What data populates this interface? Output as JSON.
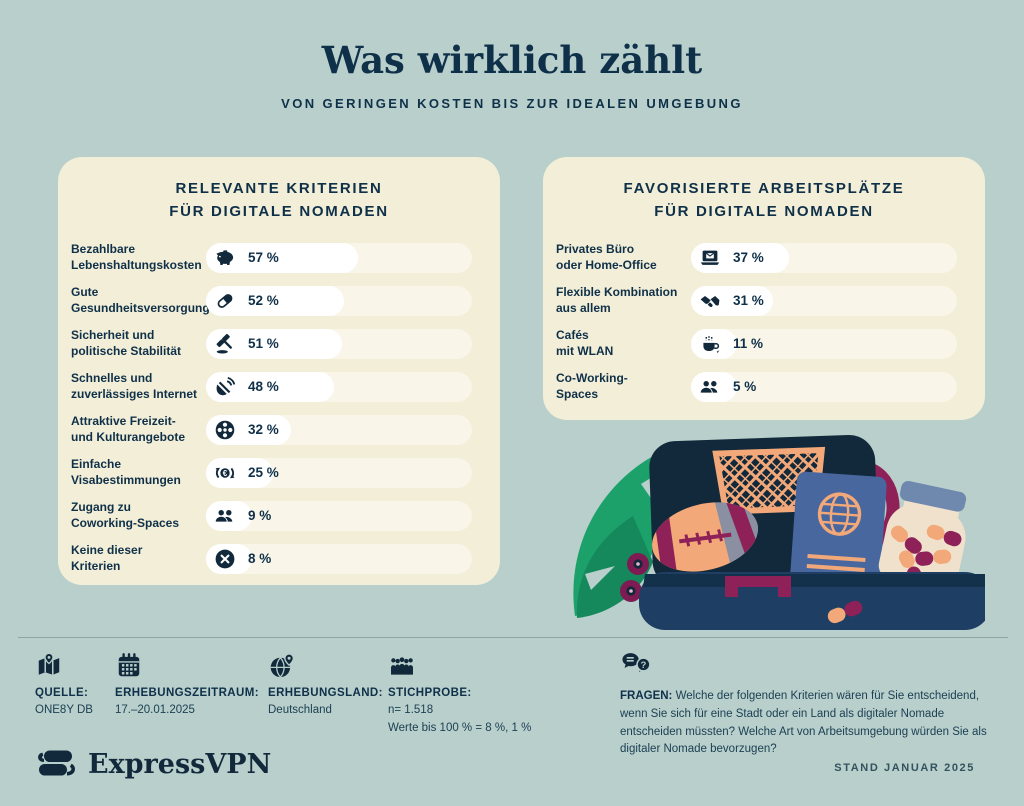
{
  "header": {
    "title": "Was wirklich zählt",
    "subtitle": "VON GERINGEN KOSTEN BIS ZUR IDEALEN UMGEBUNG"
  },
  "panels": {
    "criteria": {
      "title": "RELEVANTE KRITERIEN\nFÜR DIGITALE NOMADEN",
      "rows": [
        {
          "label": "Bezahlbare\nLebenshaltungskosten",
          "icon": "piggy-bank",
          "value": 57,
          "value_label": "57 %"
        },
        {
          "label": "Gute\nGesundheitsversorgung",
          "icon": "pill",
          "value": 52,
          "value_label": "52 %"
        },
        {
          "label": "Sicherheit und\npolitische Stabilität",
          "icon": "gavel",
          "value": 51,
          "value_label": "51 %"
        },
        {
          "label": "Schnelles und\nzuverlässiges Internet",
          "icon": "satellite-dish",
          "value": 48,
          "value_label": "48 %"
        },
        {
          "label": "Attraktive Freizeit-\nund Kulturangebote",
          "icon": "film-reel",
          "value": 32,
          "value_label": "32 %"
        },
        {
          "label": "Einfache\nVisabestimmungen",
          "icon": "currency-exchange",
          "value": 25,
          "value_label": "25 %"
        },
        {
          "label": "Zugang zu\nCoworking-Spaces",
          "icon": "people",
          "value": 9,
          "value_label": "9 %"
        },
        {
          "label": "Keine dieser\nKriterien",
          "icon": "x-circle",
          "value": 8,
          "value_label": "8 %"
        }
      ]
    },
    "workplaces": {
      "title": "FAVORISIERTE ARBEITSPLÄTZE\nFÜR DIGITALE NOMADEN",
      "rows": [
        {
          "label": "Privates Büro\noder Home-Office",
          "icon": "laptop",
          "value": 37,
          "value_label": "37 %"
        },
        {
          "label": "Flexible Kombination\naus allem",
          "icon": "handshake",
          "value": 31,
          "value_label": "31 %"
        },
        {
          "label": "Cafés\nmit WLAN",
          "icon": "coffee-cup",
          "value": 11,
          "value_label": "11 %"
        },
        {
          "label": "Co-Working-\nSpaces",
          "icon": "people",
          "value": 5,
          "value_label": "5 %"
        }
      ]
    }
  },
  "footer": {
    "facts": [
      {
        "icon": "map",
        "label": "QUELLE:",
        "lines": "ONE8Y DB"
      },
      {
        "icon": "calendar",
        "label": "ERHEBUNGSZEITRAUM:",
        "lines": "17.–20.01.2025"
      },
      {
        "icon": "globe-pin",
        "label": "ERHEBUNGSLAND:",
        "lines": "Deutschland"
      },
      {
        "icon": "crowd",
        "label": "STICHPROBE:",
        "lines": "n= 1.518\nWerte bis 100 % = 8 %, 1 %"
      }
    ],
    "questions": {
      "icon": "speech-bubbles",
      "label": "FRAGEN:",
      "text": "Welche der folgenden Kriterien wären für Sie entscheidend, wenn Sie sich für eine Stadt oder ein Land als digitaler Nomade entscheiden müssten? Welche Art von Arbeitsumgebung würden Sie als digitaler Nomade bevorzugen?"
    },
    "brand": "ExpressVPN",
    "stand": "STAND JANUAR 2025"
  },
  "colors": {
    "background": "#b8cfcb",
    "panel": "#f3eed7",
    "bar_track": "#f9f5e8",
    "bar_fill": "#ffffff",
    "navy": "#0f3049",
    "leaf_green": "#1ca16b",
    "orange": "#f2a878",
    "magenta": "#8e2157",
    "passport_blue": "#49679f"
  },
  "chart_data": [
    {
      "type": "bar",
      "orientation": "horizontal",
      "title": "Relevante Kriterien für Digitale Nomaden",
      "categories": [
        "Bezahlbare Lebenshaltungskosten",
        "Gute Gesundheitsversorgung",
        "Sicherheit und politische Stabilität",
        "Schnelles und zuverlässiges Internet",
        "Attraktive Freizeit- und Kulturangebote",
        "Einfache Visabestimmungen",
        "Zugang zu Coworking-Spaces",
        "Keine dieser Kriterien"
      ],
      "values": [
        57,
        52,
        51,
        48,
        32,
        25,
        9,
        8
      ],
      "unit": "%",
      "xlim": [
        0,
        100
      ],
      "grid": false,
      "data_labels": true
    },
    {
      "type": "bar",
      "orientation": "horizontal",
      "title": "Favorisierte Arbeitsplätze für Digitale Nomaden",
      "categories": [
        "Privates Büro oder Home-Office",
        "Flexible Kombination aus allem",
        "Cafés mit WLAN",
        "Co-Working-Spaces"
      ],
      "values": [
        37,
        31,
        11,
        5
      ],
      "unit": "%",
      "xlim": [
        0,
        100
      ],
      "grid": false,
      "data_labels": true
    }
  ]
}
